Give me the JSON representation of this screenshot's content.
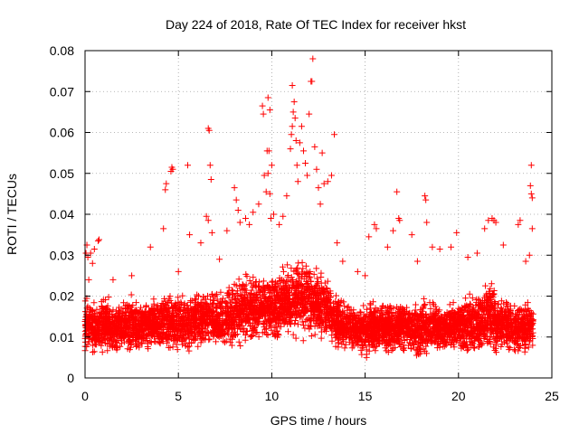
{
  "chart_data": {
    "type": "scatter",
    "title": "Day 224 of 2018, Rate Of TEC Index for receiver hkst",
    "xlabel": "GPS time / hours",
    "ylabel": "ROTI / TECUs",
    "xlim": [
      0,
      25
    ],
    "ylim": [
      0,
      0.08
    ],
    "xticks": [
      0,
      5,
      10,
      15,
      20,
      25
    ],
    "xtick_labels": [
      "0",
      "5",
      "10",
      "15",
      "20",
      "25"
    ],
    "yticks": [
      0,
      0.01,
      0.02,
      0.03,
      0.04,
      0.05,
      0.06,
      0.07,
      0.08
    ],
    "ytick_labels": [
      "0",
      "0.01",
      "0.02",
      "0.03",
      "0.04",
      "0.05",
      "0.06",
      "0.07",
      "0.08"
    ],
    "grid": true,
    "marker": "plus",
    "color": "#ff0000",
    "series": [
      {
        "name": "ROTI",
        "points": [
          [
            0.05,
            0.0305
          ],
          [
            0.1,
            0.0325
          ],
          [
            0.15,
            0.0295
          ],
          [
            0.2,
            0.024
          ],
          [
            0.3,
            0.0305
          ],
          [
            0.4,
            0.028
          ],
          [
            0.5,
            0.0315
          ],
          [
            0.7,
            0.0335
          ],
          [
            0.75,
            0.0338
          ],
          [
            1.5,
            0.024
          ],
          [
            2.5,
            0.025
          ],
          [
            3.5,
            0.032
          ],
          [
            4.2,
            0.0365
          ],
          [
            4.3,
            0.046
          ],
          [
            4.35,
            0.0475
          ],
          [
            4.6,
            0.0505
          ],
          [
            4.65,
            0.0515
          ],
          [
            4.7,
            0.051
          ],
          [
            5.0,
            0.026
          ],
          [
            5.5,
            0.052
          ],
          [
            5.6,
            0.035
          ],
          [
            6.2,
            0.033
          ],
          [
            6.5,
            0.0395
          ],
          [
            6.6,
            0.0385
          ],
          [
            6.6,
            0.061
          ],
          [
            6.65,
            0.0605
          ],
          [
            6.7,
            0.052
          ],
          [
            6.75,
            0.0485
          ],
          [
            6.8,
            0.0355
          ],
          [
            7.2,
            0.029
          ],
          [
            7.6,
            0.036
          ],
          [
            8.0,
            0.0465
          ],
          [
            8.1,
            0.0435
          ],
          [
            8.2,
            0.041
          ],
          [
            8.3,
            0.038
          ],
          [
            8.6,
            0.039
          ],
          [
            8.8,
            0.0375
          ],
          [
            9.0,
            0.0405
          ],
          [
            9.3,
            0.0425
          ],
          [
            9.5,
            0.0665
          ],
          [
            9.55,
            0.0645
          ],
          [
            9.7,
            0.0455
          ],
          [
            9.6,
            0.0495
          ],
          [
            9.8,
            0.0685
          ],
          [
            9.9,
            0.0655
          ],
          [
            9.75,
            0.0555
          ],
          [
            9.85,
            0.0555
          ],
          [
            9.8,
            0.05
          ],
          [
            9.9,
            0.045
          ],
          [
            9.95,
            0.039
          ],
          [
            10.0,
            0.052
          ],
          [
            10.1,
            0.04
          ],
          [
            10.4,
            0.0375
          ],
          [
            10.6,
            0.0395
          ],
          [
            10.8,
            0.0445
          ],
          [
            11.0,
            0.056
          ],
          [
            11.05,
            0.0595
          ],
          [
            11.1,
            0.0615
          ],
          [
            11.15,
            0.065
          ],
          [
            11.2,
            0.0675
          ],
          [
            11.1,
            0.0715
          ],
          [
            11.25,
            0.0635
          ],
          [
            11.3,
            0.058
          ],
          [
            11.35,
            0.052
          ],
          [
            11.4,
            0.048
          ],
          [
            11.5,
            0.0575
          ],
          [
            11.6,
            0.0615
          ],
          [
            11.7,
            0.0555
          ],
          [
            11.8,
            0.0525
          ],
          [
            11.9,
            0.0495
          ],
          [
            12.0,
            0.0645
          ],
          [
            12.1,
            0.0725
          ],
          [
            12.15,
            0.0725
          ],
          [
            12.2,
            0.078
          ],
          [
            12.3,
            0.0565
          ],
          [
            12.4,
            0.051
          ],
          [
            12.5,
            0.0465
          ],
          [
            12.6,
            0.0425
          ],
          [
            12.7,
            0.055
          ],
          [
            12.8,
            0.0475
          ],
          [
            13.0,
            0.048
          ],
          [
            13.2,
            0.0495
          ],
          [
            13.35,
            0.0595
          ],
          [
            13.5,
            0.033
          ],
          [
            13.8,
            0.0285
          ],
          [
            14.6,
            0.026
          ],
          [
            15.0,
            0.025
          ],
          [
            15.2,
            0.0345
          ],
          [
            15.5,
            0.0375
          ],
          [
            15.6,
            0.0365
          ],
          [
            16.2,
            0.032
          ],
          [
            16.5,
            0.036
          ],
          [
            16.7,
            0.0455
          ],
          [
            16.8,
            0.039
          ],
          [
            16.85,
            0.0385
          ],
          [
            17.5,
            0.035
          ],
          [
            17.8,
            0.0285
          ],
          [
            18.2,
            0.0445
          ],
          [
            18.25,
            0.0435
          ],
          [
            18.3,
            0.038
          ],
          [
            18.6,
            0.032
          ],
          [
            19.0,
            0.0315
          ],
          [
            19.6,
            0.032
          ],
          [
            19.9,
            0.0355
          ],
          [
            20.5,
            0.0295
          ],
          [
            21.0,
            0.0305
          ],
          [
            21.4,
            0.0365
          ],
          [
            21.6,
            0.0385
          ],
          [
            21.8,
            0.039
          ],
          [
            21.9,
            0.0385
          ],
          [
            22.0,
            0.038
          ],
          [
            22.4,
            0.0325
          ],
          [
            23.2,
            0.0375
          ],
          [
            23.3,
            0.0385
          ],
          [
            23.6,
            0.0285
          ],
          [
            23.8,
            0.03
          ],
          [
            23.9,
            0.052
          ],
          [
            23.85,
            0.047
          ],
          [
            23.9,
            0.045
          ],
          [
            23.95,
            0.044
          ],
          [
            23.95,
            0.0365
          ]
        ],
        "dense_band": {
          "hours": [
            0,
            0.5,
            1,
            1.5,
            2,
            2.5,
            3,
            3.5,
            4,
            4.5,
            5,
            5.5,
            6,
            6.5,
            7,
            7.5,
            8,
            8.5,
            9,
            9.5,
            10,
            10.5,
            11,
            11.5,
            12,
            12.5,
            13,
            13.5,
            14,
            14.5,
            15,
            15.5,
            16,
            16.5,
            17,
            17.5,
            18,
            18.5,
            19,
            19.5,
            20,
            20.5,
            21,
            21.5,
            21.9,
            22,
            22.5,
            23,
            23.5,
            24
          ],
          "lower": [
            0.005,
            0.005,
            0.005,
            0.0055,
            0.005,
            0.005,
            0.005,
            0.0055,
            0.0055,
            0.005,
            0.0055,
            0.0055,
            0.006,
            0.006,
            0.006,
            0.006,
            0.0065,
            0.007,
            0.007,
            0.007,
            0.0075,
            0.008,
            0.0085,
            0.0085,
            0.008,
            0.0075,
            0.007,
            0.006,
            0.005,
            0.005,
            0.0045,
            0.005,
            0.005,
            0.005,
            0.005,
            0.005,
            0.0045,
            0.005,
            0.005,
            0.005,
            0.005,
            0.004,
            0.004,
            0.005,
            0.005,
            0.005,
            0.005,
            0.005,
            0.0045,
            0.005
          ],
          "upper": [
            0.02,
            0.02,
            0.021,
            0.02,
            0.02,
            0.021,
            0.02,
            0.021,
            0.022,
            0.022,
            0.022,
            0.021,
            0.022,
            0.023,
            0.022,
            0.024,
            0.025,
            0.026,
            0.027,
            0.027,
            0.026,
            0.028,
            0.03,
            0.032,
            0.03,
            0.028,
            0.026,
            0.022,
            0.02,
            0.018,
            0.019,
            0.02,
            0.02,
            0.019,
            0.02,
            0.019,
            0.02,
            0.02,
            0.019,
            0.02,
            0.02,
            0.021,
            0.022,
            0.025,
            0.026,
            0.02,
            0.021,
            0.02,
            0.019,
            0.02
          ],
          "sampling_per_hour": 220
        }
      }
    ]
  }
}
